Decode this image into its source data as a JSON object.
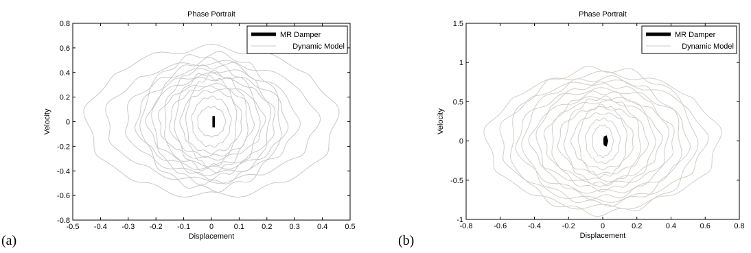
{
  "chart_data": [
    {
      "type": "line",
      "panel_label": "(a)",
      "title": "Phase Portrait",
      "xlabel": "Displacement",
      "ylabel": "Velocity",
      "xlim": [
        -0.5,
        0.5
      ],
      "ylim": [
        -0.8,
        0.8
      ],
      "xticks": [
        -0.5,
        -0.4,
        -0.3,
        -0.2,
        -0.1,
        0,
        0.1,
        0.2,
        0.3,
        0.4,
        0.5
      ],
      "xtick_labels": [
        "-0.5",
        "-0.4",
        "-0.3",
        "-0.2",
        "-0.1",
        "0",
        "0.1",
        "0.2",
        "0.3",
        "0.4",
        "0.5"
      ],
      "yticks": [
        -0.8,
        -0.6,
        -0.4,
        -0.2,
        0,
        0.2,
        0.4,
        0.6,
        0.8
      ],
      "ytick_labels": [
        "-0.8",
        "-0.6",
        "-0.4",
        "-0.2",
        "0",
        "0.2",
        "0.4",
        "0.6",
        "0.8"
      ],
      "grid": false,
      "legend_position": "top-right",
      "series": [
        {
          "name": "Dynamic Model",
          "color": "#c8c8c8",
          "loops": [
            [
              0.45,
              0.6
            ],
            [
              0.38,
              0.48
            ],
            [
              0.31,
              0.42
            ],
            [
              0.27,
              0.38
            ],
            [
              0.25,
              0.55
            ],
            [
              0.23,
              0.35
            ],
            [
              0.21,
              0.5
            ],
            [
              0.19,
              0.3
            ],
            [
              0.17,
              0.45
            ],
            [
              0.15,
              0.28
            ],
            [
              0.13,
              0.4
            ],
            [
              0.11,
              0.25
            ],
            [
              0.09,
              0.36
            ],
            [
              0.07,
              0.2
            ],
            [
              0.05,
              0.12
            ]
          ]
        },
        {
          "name": "MR Damper",
          "color": "#000000",
          "x": [
            0.006,
            0.006,
            0.006,
            0.006,
            0.01,
            0.01,
            0.01,
            0.01
          ],
          "y": [
            -0.04,
            -0.02,
            0.02,
            0.04,
            0.04,
            0.02,
            -0.02,
            -0.04
          ]
        }
      ]
    },
    {
      "type": "line",
      "panel_label": "(b)",
      "title": "Phase Portrait",
      "xlabel": "Displacement",
      "ylabel": "Velocity",
      "xlim": [
        -0.8,
        0.8
      ],
      "ylim": [
        -1,
        1.5
      ],
      "xticks": [
        -0.8,
        -0.6,
        -0.4,
        -0.2,
        0,
        0.2,
        0.4,
        0.6,
        0.8
      ],
      "xtick_labels": [
        "-0.8",
        "-0.6",
        "-0.4",
        "-0.2",
        "0",
        "0.2",
        "0.4",
        "0.6",
        "0.8"
      ],
      "yticks": [
        -1,
        -0.5,
        0,
        0.5,
        1,
        1.5
      ],
      "ytick_labels": [
        "-1",
        "-0.5",
        "0",
        "0.5",
        "1",
        "1.5"
      ],
      "grid": false,
      "legend_position": "top-right",
      "series": [
        {
          "name": "Dynamic Model",
          "color": "#d2cdc8",
          "loops": [
            [
              0.68,
              0.85
            ],
            [
              0.6,
              0.75
            ],
            [
              0.54,
              0.92
            ],
            [
              0.5,
              0.65
            ],
            [
              0.46,
              0.8
            ],
            [
              0.42,
              0.55
            ],
            [
              0.38,
              0.72
            ],
            [
              0.34,
              0.5
            ],
            [
              0.3,
              0.62
            ],
            [
              0.26,
              0.42
            ],
            [
              0.22,
              0.55
            ],
            [
              0.18,
              0.35
            ],
            [
              0.14,
              0.45
            ],
            [
              0.1,
              0.28
            ],
            [
              0.06,
              0.2
            ]
          ]
        },
        {
          "name": "MR Damper",
          "color": "#000000",
          "x": [
            0.008,
            0.01,
            0.02,
            0.028,
            0.02,
            0.01,
            0.008
          ],
          "y": [
            0.03,
            0.05,
            0.06,
            0.0,
            -0.06,
            -0.05,
            -0.03
          ]
        }
      ]
    }
  ]
}
